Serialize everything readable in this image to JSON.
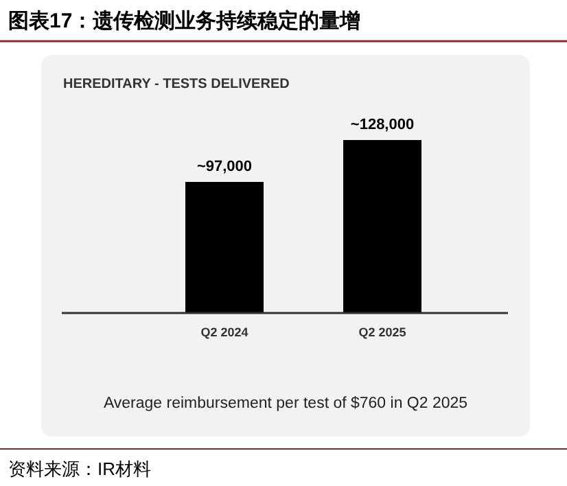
{
  "chart_data": {
    "type": "bar",
    "title": "图表17：遗传检测业务持续稳定的量增",
    "subtitle": "HEREDITARY - TESTS DELIVERED",
    "categories": [
      "Q2 2024",
      "Q2 2025"
    ],
    "values": [
      97000,
      128000
    ],
    "value_labels": [
      "~97,000",
      "~128,000"
    ],
    "color": "#000000",
    "annotations": [
      "Average reimbursement per test of $760 in Q2 2025",
      "资料来源：IR材料"
    ]
  }
}
